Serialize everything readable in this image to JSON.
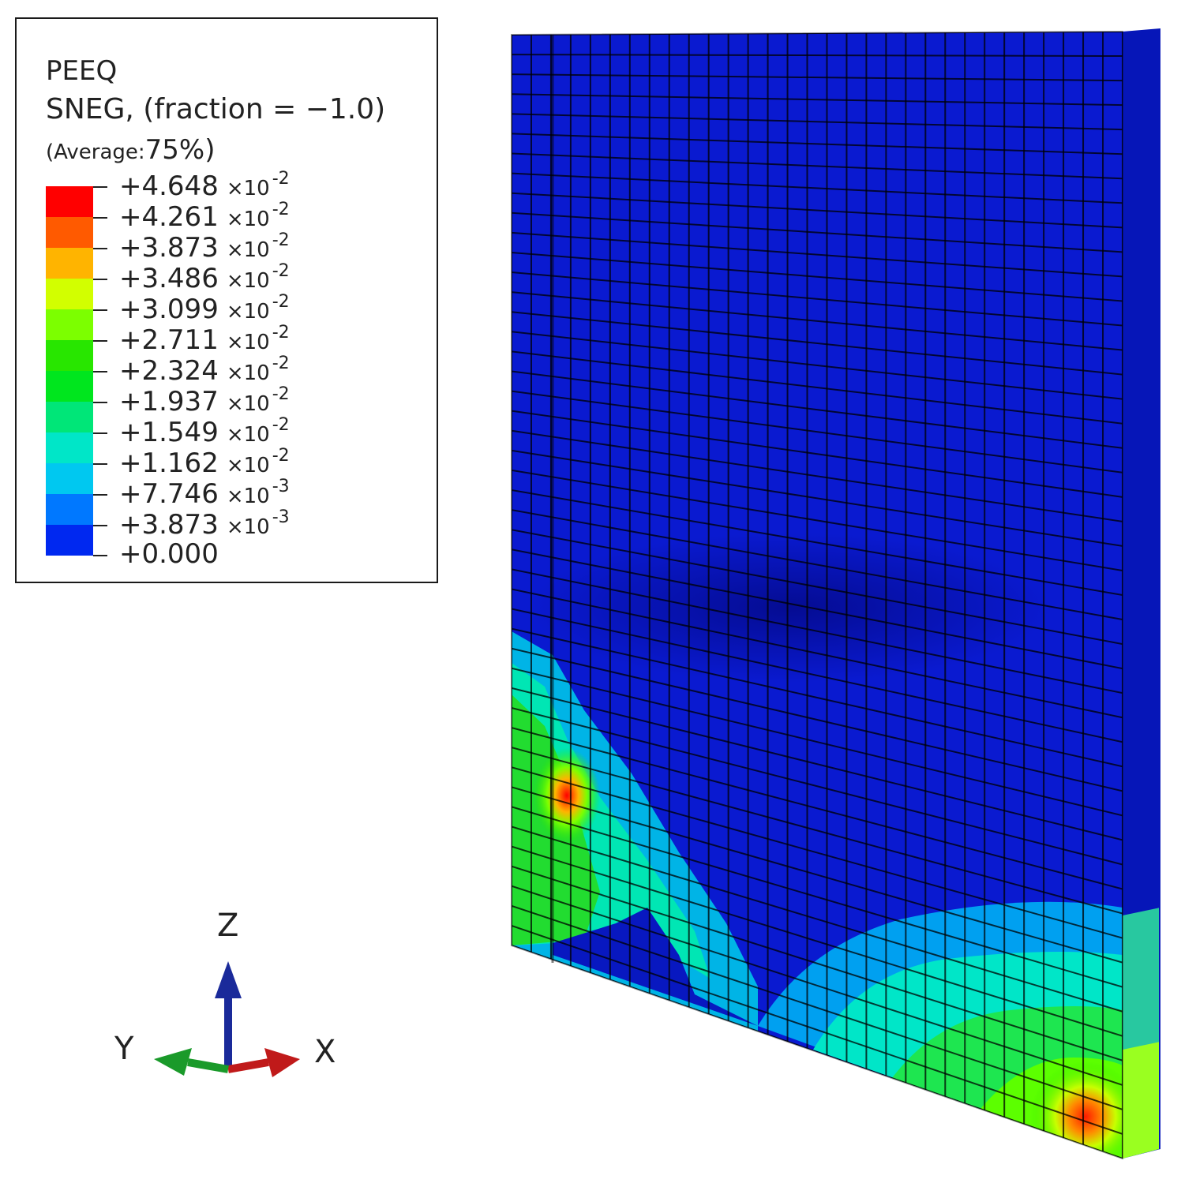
{
  "legend": {
    "variable": "PEEQ",
    "section_point": "SNEG, (fraction = −1.0)",
    "average_prefix": "(Average:",
    "average_value": "75%)",
    "levels": [
      {
        "sign": "+4.648",
        "mult": "×10",
        "exp": "-2",
        "color": "#ff0000"
      },
      {
        "sign": "+4.261",
        "mult": "×10",
        "exp": "-2",
        "color": "#ff5a00"
      },
      {
        "sign": "+3.873",
        "mult": "×10",
        "exp": "-2",
        "color": "#ffb400"
      },
      {
        "sign": "+3.486",
        "mult": "×10",
        "exp": "-2",
        "color": "#d2ff00"
      },
      {
        "sign": "+3.099",
        "mult": "×10",
        "exp": "-2",
        "color": "#7cff00"
      },
      {
        "sign": "+2.711",
        "mult": "×10",
        "exp": "-2",
        "color": "#28e600"
      },
      {
        "sign": "+2.324",
        "mult": "×10",
        "exp": "-2",
        "color": "#00e61e"
      },
      {
        "sign": "+1.937",
        "mult": "×10",
        "exp": "-2",
        "color": "#00e678"
      },
      {
        "sign": "+1.549",
        "mult": "×10",
        "exp": "-2",
        "color": "#00e6c8"
      },
      {
        "sign": "+1.162",
        "mult": "×10",
        "exp": "-2",
        "color": "#00c8f0"
      },
      {
        "sign": "+7.746",
        "mult": "×10",
        "exp": "-3",
        "color": "#0078ff"
      },
      {
        "sign": "+3.873",
        "mult": "×10",
        "exp": "-3",
        "color": "#0028f0"
      },
      {
        "sign": "+0.000",
        "mult": "",
        "exp": "",
        "color": "#0000dc"
      }
    ]
  },
  "triad": {
    "z_label": "Z",
    "y_label": "Y",
    "x_label": "X",
    "z_color": "#1a2a9a",
    "y_color": "#1a9a2a",
    "x_color": "#c01a1a"
  },
  "colors": {
    "background_field": "#0a1ad0",
    "mesh_line": "#000000"
  }
}
